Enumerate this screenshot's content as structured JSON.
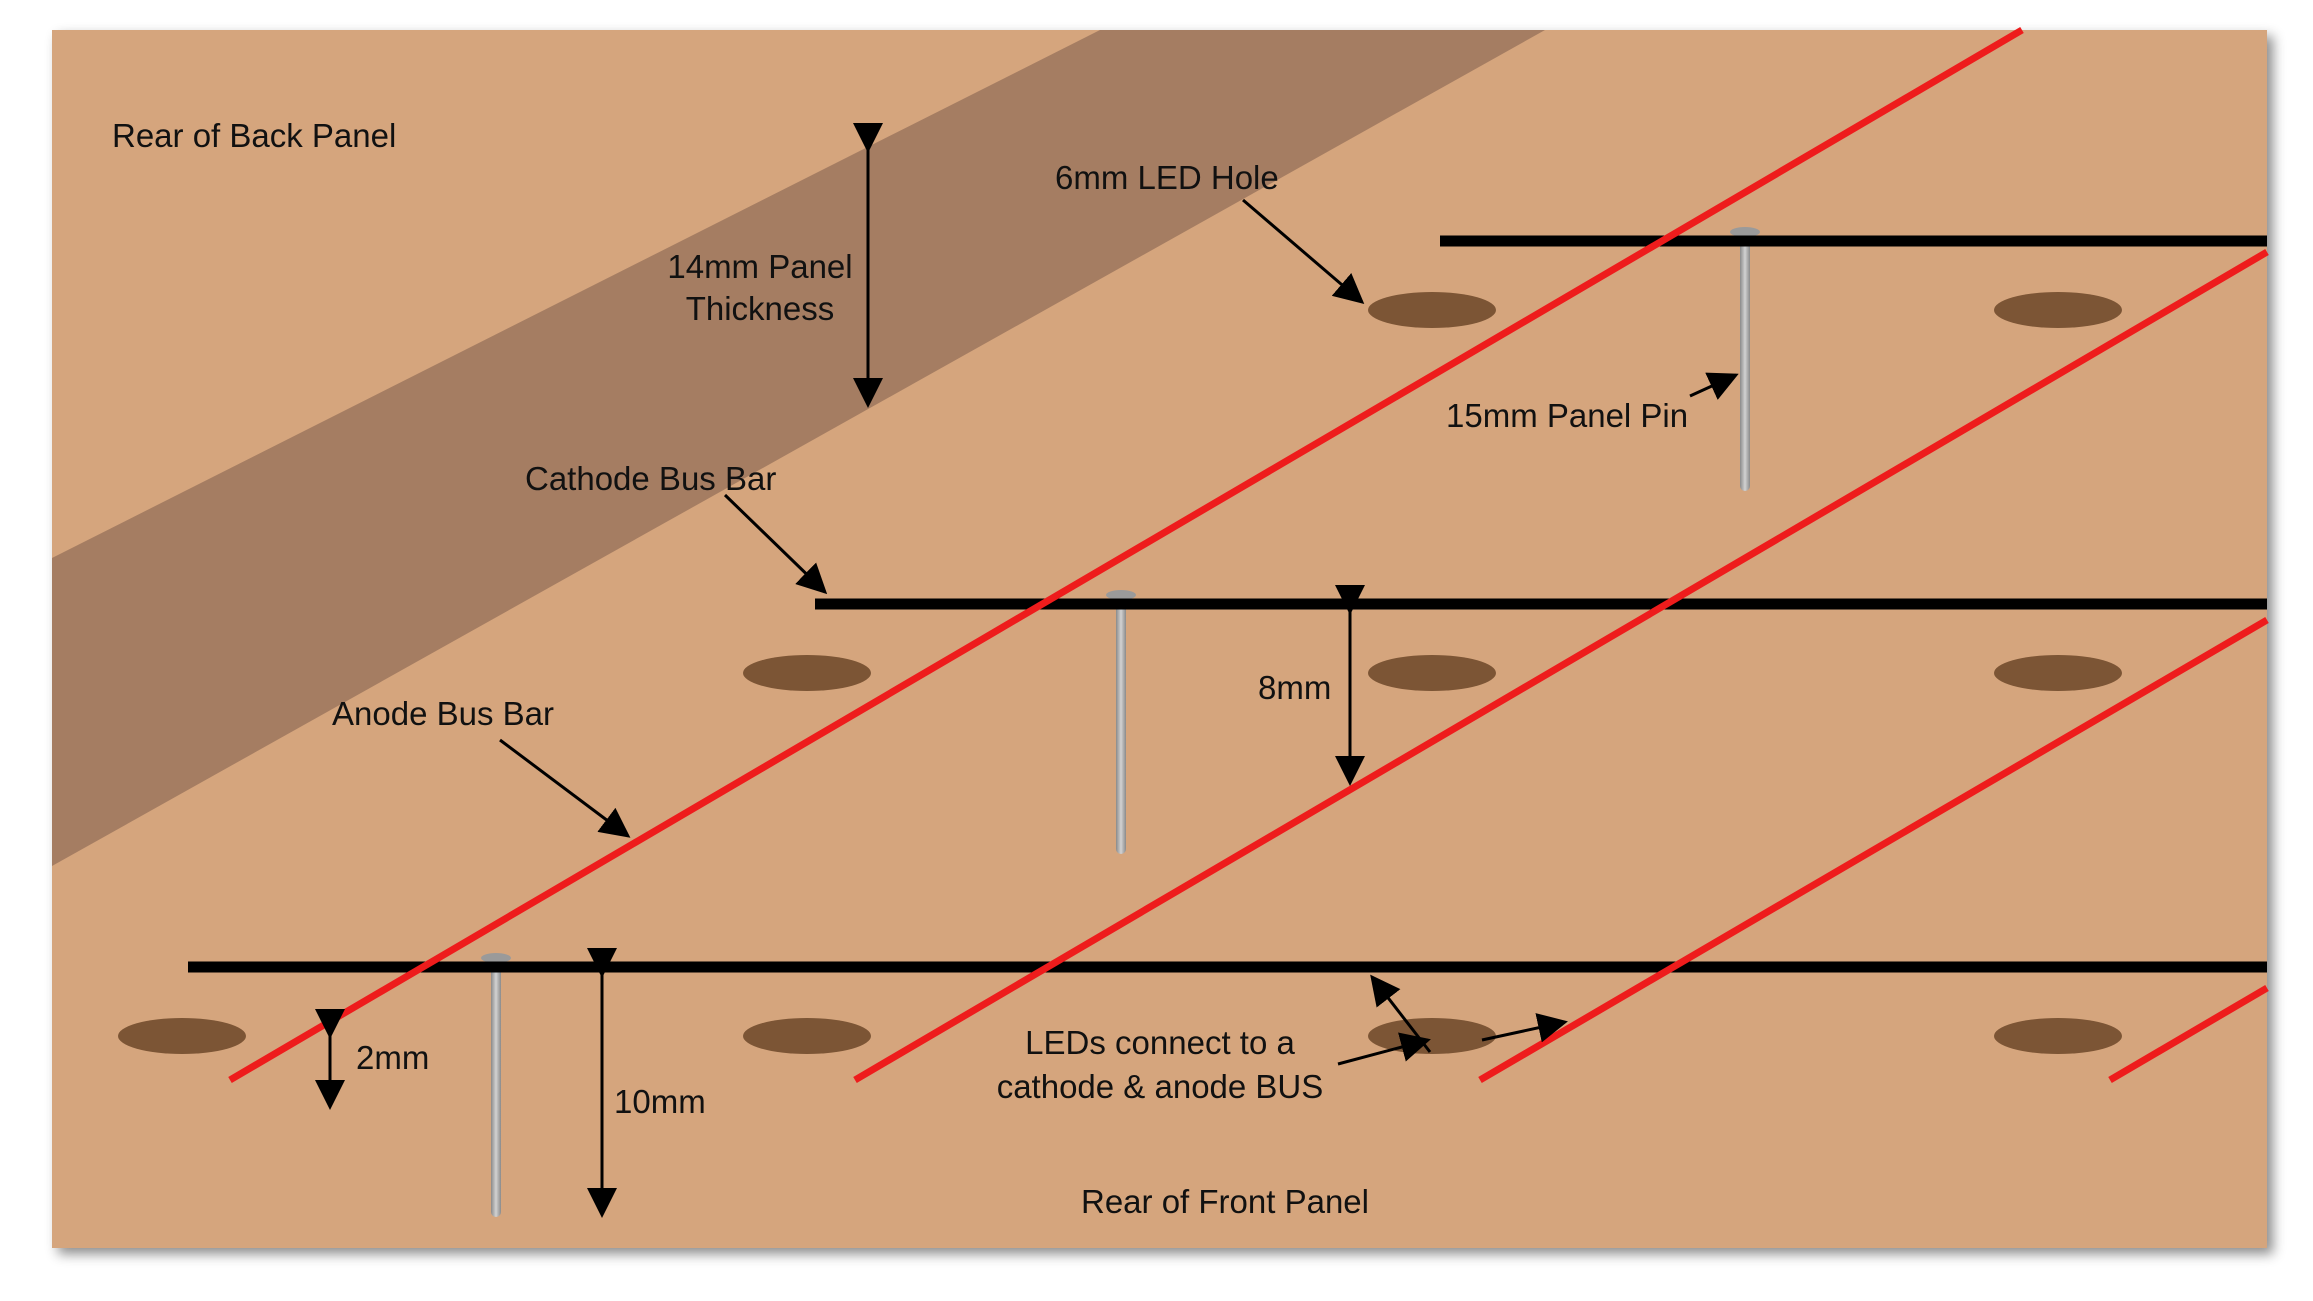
{
  "labels": {
    "rear_back_panel": "Rear of Back Panel",
    "led_hole": "6mm LED Hole",
    "panel_thickness_line1": "14mm Panel",
    "panel_thickness_line2": "Thickness",
    "panel_pin": "15mm Panel Pin",
    "cathode_bus": "Cathode Bus Bar",
    "anode_bus": "Anode Bus Bar",
    "gap_8mm": "8mm",
    "gap_2mm": "2mm",
    "gap_10mm": "10mm",
    "leds_connect_line1": "LEDs connect to a",
    "leds_connect_line2": "cathode & anode BUS",
    "rear_front_panel": "Rear of Front Panel"
  },
  "colors": {
    "board": "#d5a57d",
    "back_panel_band": "#a57d62",
    "anode_wire": "#ee1c1c",
    "cathode_bar": "#000000",
    "led_hole": "#7c5535",
    "pin": "#a4a4a4"
  }
}
